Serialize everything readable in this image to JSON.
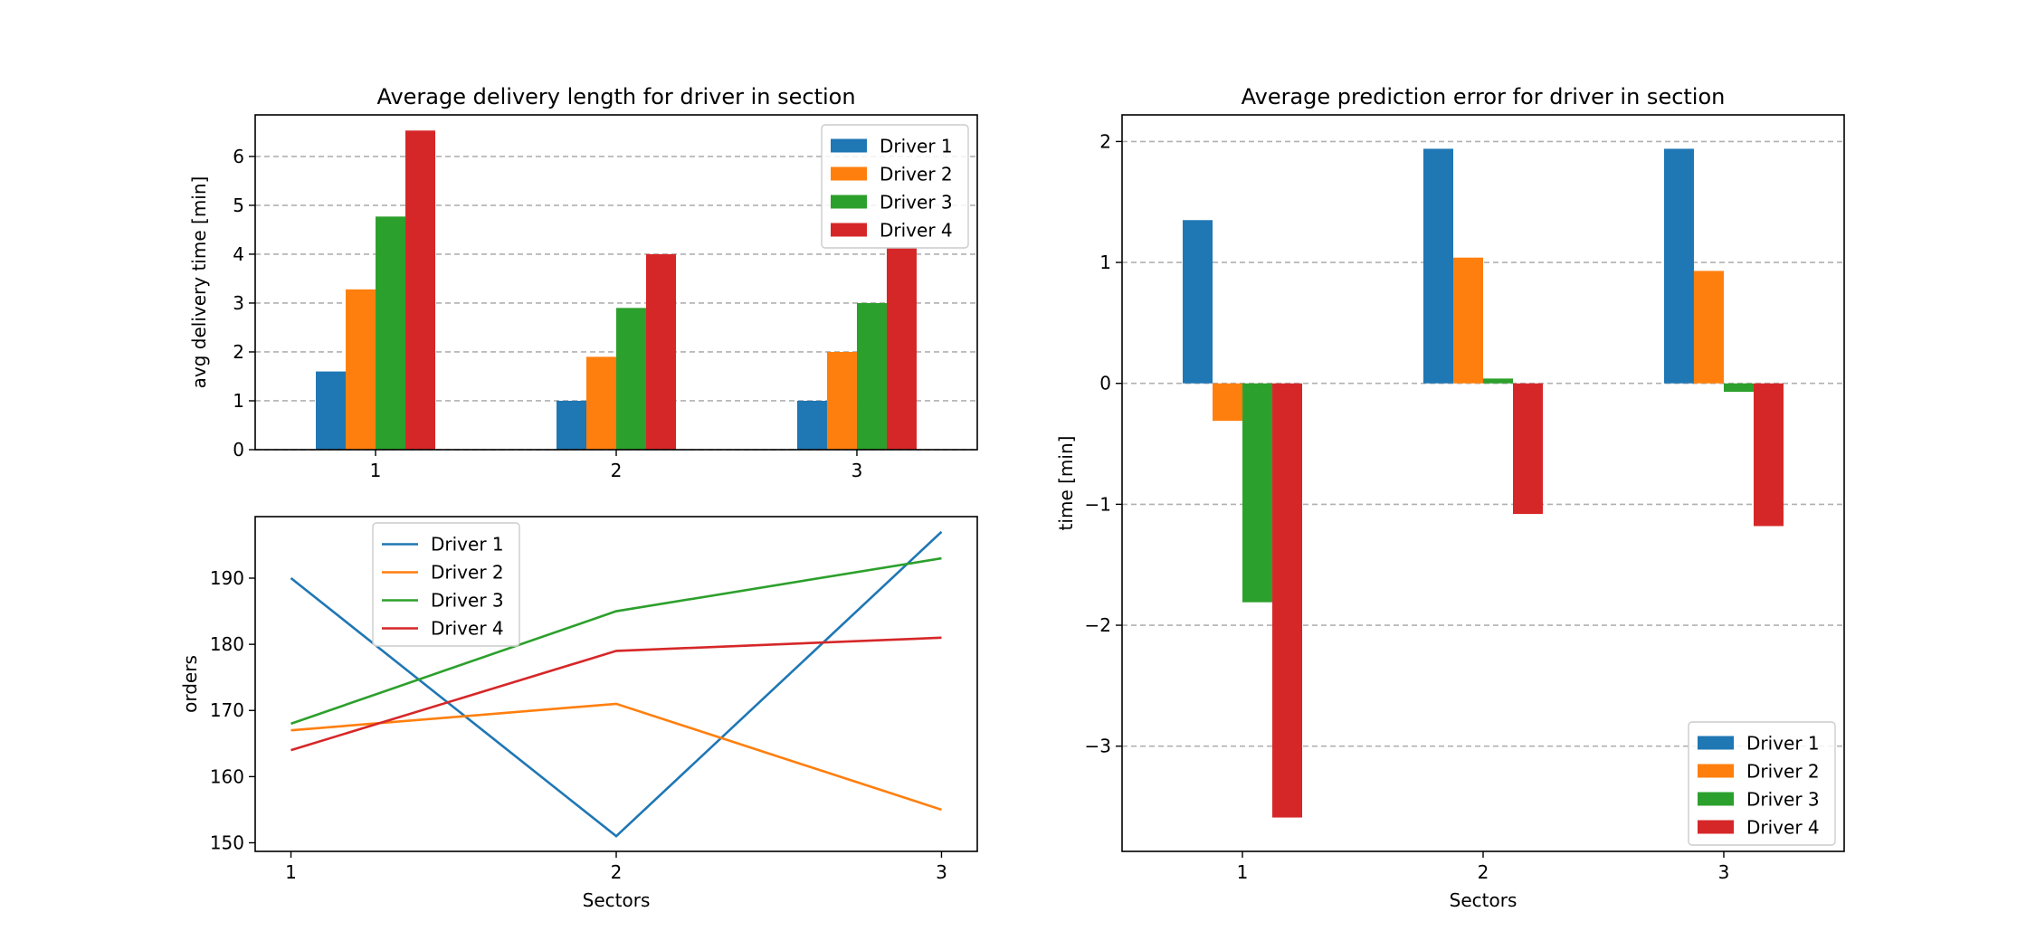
{
  "chart_data": [
    {
      "type": "bar",
      "title": "Average delivery length for driver in section",
      "xlabel": "",
      "ylabel": "avg delivery time [min]",
      "categories": [
        "1",
        "2",
        "3"
      ],
      "ylim": [
        0,
        6.85
      ],
      "yticks": [
        "0",
        "1",
        "2",
        "3",
        "4",
        "5",
        "6"
      ],
      "grid": "y-dashed",
      "legend": "top-right",
      "series": [
        {
          "name": "Driver 1",
          "color": "#1f77b4",
          "values": [
            1.6,
            1.0,
            1.0
          ]
        },
        {
          "name": "Driver 2",
          "color": "#ff7f0e",
          "values": [
            3.28,
            1.9,
            2.0
          ]
        },
        {
          "name": "Driver 3",
          "color": "#2ca02c",
          "values": [
            4.77,
            2.9,
            3.0
          ]
        },
        {
          "name": "Driver 4",
          "color": "#d62728",
          "values": [
            6.53,
            4.0,
            4.12
          ]
        }
      ]
    },
    {
      "type": "line",
      "title": "",
      "xlabel": "Sectors",
      "ylabel": "orders",
      "x": [
        1,
        2,
        3
      ],
      "xticks": [
        "1",
        "2",
        "3"
      ],
      "ylim": [
        148.7,
        199.3
      ],
      "yticks": [
        "150",
        "160",
        "170",
        "180",
        "190"
      ],
      "grid": "off",
      "legend": "upper-center",
      "series": [
        {
          "name": "Driver 1",
          "color": "#1f77b4",
          "values": [
            190,
            151,
            197
          ]
        },
        {
          "name": "Driver 2",
          "color": "#ff7f0e",
          "values": [
            167,
            171,
            155
          ]
        },
        {
          "name": "Driver 3",
          "color": "#2ca02c",
          "values": [
            168,
            185,
            193
          ]
        },
        {
          "name": "Driver 4",
          "color": "#d62728",
          "values": [
            164,
            179,
            181
          ]
        }
      ]
    },
    {
      "type": "bar",
      "title": "Average prediction error for driver in section",
      "xlabel": "Sectors",
      "ylabel": "time [min]",
      "categories": [
        "1",
        "2",
        "3"
      ],
      "ylim": [
        -3.87,
        2.22
      ],
      "yticks": [
        "−3",
        "−2",
        "−1",
        "0",
        "1",
        "2"
      ],
      "grid": "y-dashed",
      "legend": "bottom-right",
      "series": [
        {
          "name": "Driver 1",
          "color": "#1f77b4",
          "values": [
            1.35,
            1.94,
            1.94
          ]
        },
        {
          "name": "Driver 2",
          "color": "#ff7f0e",
          "values": [
            -0.31,
            1.04,
            0.93
          ]
        },
        {
          "name": "Driver 3",
          "color": "#2ca02c",
          "values": [
            -1.81,
            0.04,
            -0.07
          ]
        },
        {
          "name": "Driver 4",
          "color": "#d62728",
          "values": [
            -3.59,
            -1.08,
            -1.18
          ]
        }
      ]
    }
  ]
}
